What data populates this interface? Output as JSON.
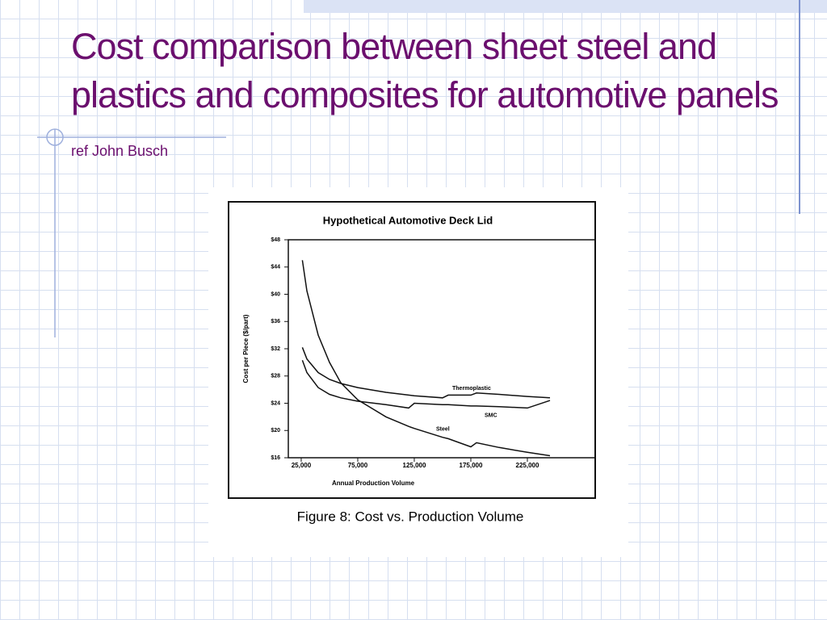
{
  "slide": {
    "title": "Cost comparison between sheet steel and plastics and composites for automotive panels",
    "reference": "ref John Busch",
    "caption": "Figure 8:  Cost vs. Production Volume"
  },
  "chart_data": {
    "type": "line",
    "title": "Hypothetical Automotive Deck Lid",
    "x_label": "Annual Production Volume",
    "y_label": "Cost per Piece ($/part)",
    "x": [
      26000,
      30000,
      40000,
      50000,
      60000,
      75000,
      100000,
      120000,
      125000,
      150000,
      155000,
      175000,
      180000,
      200000,
      225000,
      245000
    ],
    "series": [
      {
        "name": "Thermoplastic",
        "color": "#111111",
        "values": [
          32.2,
          30.5,
          28.5,
          27.5,
          26.9,
          26.3,
          25.6,
          25.2,
          25.1,
          24.8,
          25.2,
          25.2,
          25.5,
          25.3,
          25.0,
          24.8
        ]
      },
      {
        "name": "SMC",
        "color": "#111111",
        "values": [
          30.3,
          28.5,
          26.3,
          25.3,
          24.8,
          24.3,
          23.8,
          23.3,
          24.0,
          23.8,
          23.8,
          23.6,
          23.6,
          23.5,
          23.3,
          24.4
        ]
      },
      {
        "name": "Steel",
        "color": "#111111",
        "values": [
          45.0,
          40.5,
          34.0,
          30.0,
          27.0,
          24.5,
          22.0,
          20.6,
          20.3,
          19.0,
          18.8,
          17.6,
          18.2,
          17.5,
          16.8,
          16.3
        ]
      }
    ],
    "xlim": [
      13600,
      285000
    ],
    "ylim": [
      16,
      48
    ],
    "xticks": [
      {
        "value": 25000,
        "label": "25,000"
      },
      {
        "value": 75000,
        "label": "75,000"
      },
      {
        "value": 125000,
        "label": "125,000"
      },
      {
        "value": 175000,
        "label": "175,000"
      },
      {
        "value": 225000,
        "label": "225,000"
      }
    ],
    "yticks": [
      {
        "value": 16,
        "label": "$16"
      },
      {
        "value": 20,
        "label": "$20"
      },
      {
        "value": 24,
        "label": "$24"
      },
      {
        "value": 28,
        "label": "$28"
      },
      {
        "value": 32,
        "label": "$32"
      },
      {
        "value": 36,
        "label": "$36"
      },
      {
        "value": 40,
        "label": "$40"
      },
      {
        "value": 44,
        "label": "$44"
      },
      {
        "value": 48,
        "label": "$48"
      }
    ],
    "grid": false
  }
}
